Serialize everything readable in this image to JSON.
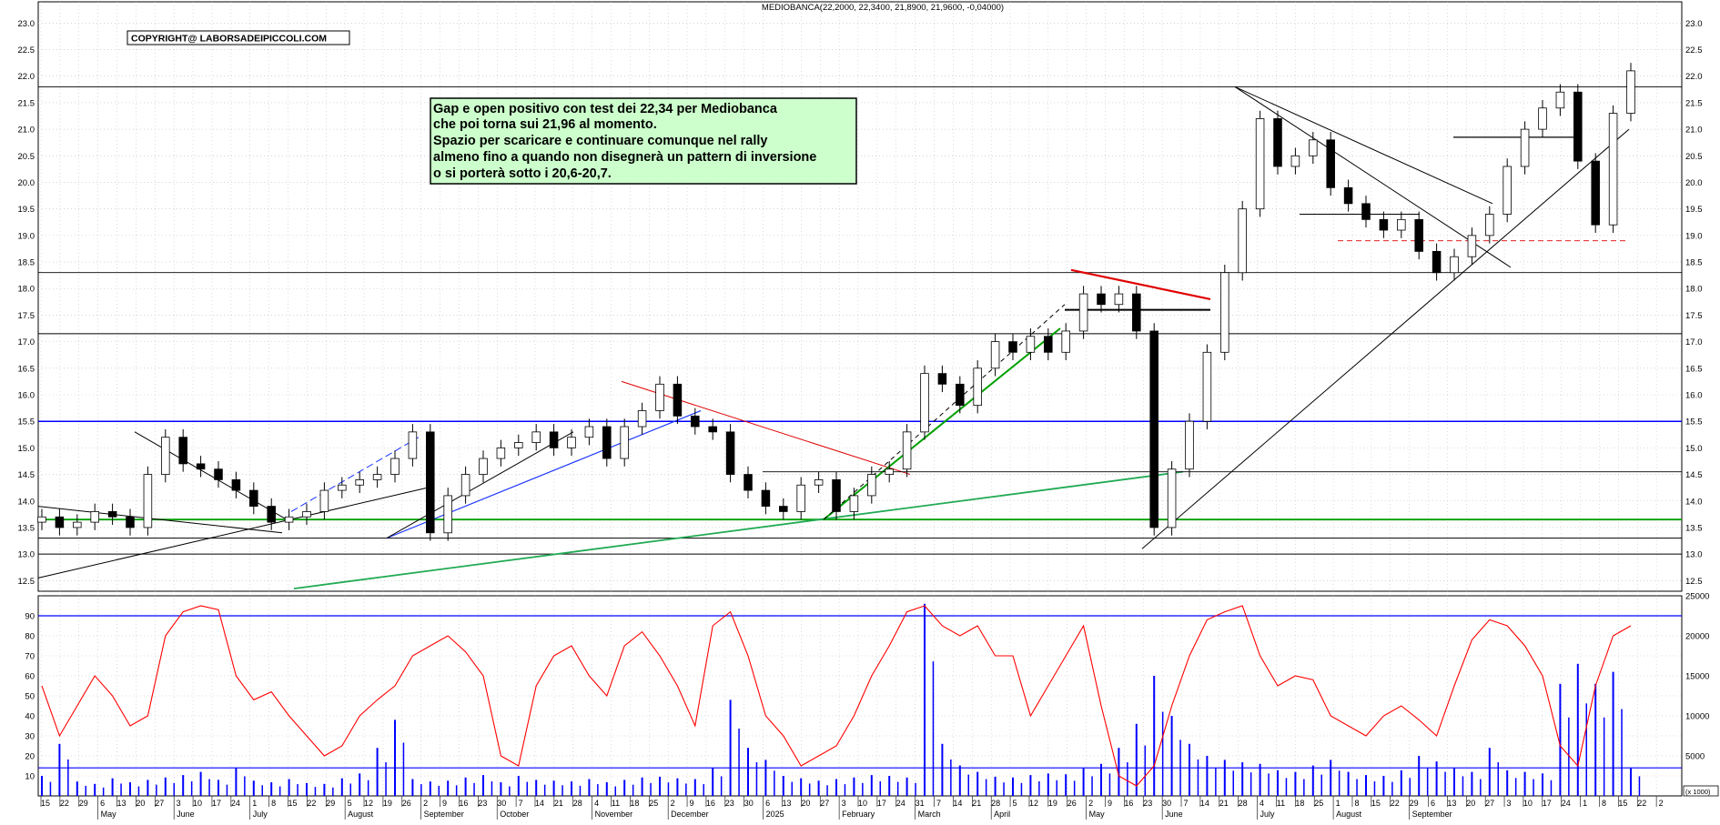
{
  "chart_data": [
    {
      "type": "candlestick",
      "title": "MEDIOBANCA(22,2000, 22,3400, 21,8900, 21,9600, -0,04000)",
      "copyright": "COPYRIGHT@ LABORSADEIPICCOLI.COM",
      "note_lines": [
        "Gap e open positivo con test dei 22,34 per Mediobanca",
        "che poi torna sui 21,96 al momento.",
        "Spazio per scaricare e continuare comunque nel rally",
        "almeno fino a quando non disegnerà un pattern di inversione",
        "o si porterà sotto i 20,6-20,7."
      ],
      "ylim": [
        12.3,
        23.4
      ],
      "y_ticks": [
        12.5,
        13.0,
        13.5,
        14.0,
        14.5,
        15.0,
        15.5,
        16.0,
        16.5,
        17.0,
        17.5,
        18.0,
        18.5,
        19.0,
        19.5,
        20.0,
        20.5,
        21.0,
        21.5,
        22.0,
        22.5,
        23.0
      ],
      "y_tick_labels": [
        "12.5",
        "13.0",
        "13.5",
        "14.0",
        "14.5",
        "15.0",
        "15.5",
        "16.0",
        "16.5",
        "17.0",
        "17.5",
        "18.0",
        "18.5",
        "19.0",
        "19.5",
        "20.0",
        "20.5",
        "21.0",
        "21.5",
        "22.0",
        "22.5",
        "23.0"
      ],
      "grid": true,
      "close_path_weekly": [
        13.7,
        13.5,
        13.6,
        13.8,
        13.7,
        13.5,
        14.5,
        15.2,
        14.7,
        14.6,
        14.4,
        14.2,
        13.9,
        13.6,
        13.7,
        13.8,
        14.2,
        14.3,
        14.4,
        14.5,
        14.8,
        15.3,
        13.4,
        14.1,
        14.5,
        14.8,
        15.0,
        15.1,
        15.3,
        15.0,
        15.2,
        15.4,
        14.8,
        15.4,
        15.7,
        16.2,
        15.6,
        15.4,
        15.3,
        14.5,
        14.2,
        13.9,
        13.8,
        14.3,
        14.4,
        13.8,
        14.1,
        14.5,
        14.6,
        15.3,
        16.4,
        16.2,
        15.8,
        16.5,
        17.0,
        16.8,
        17.1,
        16.8,
        17.2,
        17.9,
        17.7,
        17.9,
        17.2,
        13.5,
        14.6,
        15.5,
        16.8,
        18.3,
        19.5,
        21.2,
        20.3,
        20.5,
        20.8,
        19.9,
        19.6,
        19.3,
        19.1,
        19.3,
        18.7,
        18.3,
        18.6,
        19.0,
        19.4,
        20.3,
        21.0,
        21.4,
        21.7,
        20.4,
        19.2,
        21.3,
        22.1
      ],
      "horizontal_levels": [
        {
          "value": 21.8,
          "color": "#000000"
        },
        {
          "value": 18.3,
          "color": "#000000"
        },
        {
          "value": 17.15,
          "color": "#000000"
        },
        {
          "value": 15.5,
          "color": "#0000ff"
        },
        {
          "value": 13.65,
          "color": "#00a000"
        },
        {
          "value": 13.3,
          "color": "#000000"
        },
        {
          "value": 13.0,
          "color": "#000000"
        },
        {
          "value": 18.9,
          "color": "#e00000",
          "dashed": true
        }
      ]
    },
    {
      "type": "line",
      "series": [
        {
          "color": "#ff0000",
          "values": [
            55,
            30,
            45,
            60,
            50,
            35,
            40,
            80,
            92,
            95,
            93,
            60,
            48,
            52,
            40,
            30,
            20,
            25,
            40,
            48,
            55,
            70,
            75,
            80,
            72,
            60,
            20,
            15,
            55,
            70,
            75,
            60,
            50,
            75,
            82,
            70,
            55,
            35,
            85,
            92,
            70,
            40,
            30,
            15,
            20,
            25,
            40,
            60,
            75,
            92,
            95,
            85,
            80,
            85,
            70,
            70,
            40,
            55,
            70,
            85,
            45,
            10,
            5,
            15,
            45,
            70,
            88,
            92,
            95,
            70,
            55,
            60,
            58,
            40,
            35,
            30,
            40,
            45,
            38,
            30,
            55,
            78,
            88,
            85,
            75,
            60,
            25,
            15,
            55,
            80,
            85
          ]
        }
      ],
      "ylim": [
        0,
        100
      ],
      "y_ticks": [
        10,
        20,
        30,
        40,
        50,
        60,
        70,
        80,
        90
      ],
      "y_tick_labels": [
        "10",
        "20",
        "30",
        "40",
        "50",
        "60",
        "70",
        "80",
        "90"
      ],
      "reference_lines": [
        90,
        14
      ]
    },
    {
      "type": "bar",
      "name": "volume",
      "color": "#0000ff",
      "ylim": [
        0,
        25000
      ],
      "y_ticks": [
        5000,
        10000,
        15000,
        20000,
        25000
      ],
      "y_tick_labels": [
        "5000",
        "10000",
        "15000",
        "20000",
        "25000"
      ],
      "unit_label": "(x 1000)",
      "values": [
        2500,
        6500,
        1800,
        1500,
        2200,
        1700,
        2000,
        2300,
        2600,
        3000,
        2000,
        3500,
        1900,
        1700,
        2100,
        1600,
        1500,
        2200,
        2800,
        6000,
        9500,
        2100,
        1800,
        1900,
        2300,
        2600,
        1700,
        2500,
        2000,
        1900,
        1800,
        2100,
        1700,
        2000,
        2300,
        2400,
        2200,
        2100,
        3500,
        12000,
        6000,
        4500,
        2500,
        2200,
        1900,
        2100,
        2300,
        2600,
        2500,
        2300,
        24000,
        6500,
        3800,
        3000,
        2400,
        2300,
        2600,
        2800,
        2700,
        3500,
        4000,
        6000,
        9000,
        15000,
        10000,
        6500,
        5000,
        4500,
        4200,
        4000,
        3200,
        3000,
        3800,
        4500,
        3000,
        2600,
        2500,
        3200,
        5000,
        4300,
        3500,
        3000,
        6000,
        3200,
        3000,
        2800,
        14000,
        16500,
        14000,
        15500,
        3500
      ]
    }
  ],
  "x_axis": {
    "day_ticks": [
      "15",
      "22",
      "29",
      "6",
      "13",
      "20",
      "27",
      "3",
      "10",
      "17",
      "24",
      "1",
      "8",
      "15",
      "22",
      "29",
      "5",
      "12",
      "19",
      "26",
      "2",
      "9",
      "16",
      "23",
      "30",
      "7",
      "14",
      "21",
      "28",
      "4",
      "11",
      "18",
      "25",
      "2",
      "9",
      "16",
      "23",
      "30",
      "6",
      "13",
      "20",
      "27",
      "3",
      "10",
      "17",
      "24",
      "31",
      "7",
      "14",
      "21",
      "28",
      "5",
      "12",
      "19",
      "26",
      "2",
      "9",
      "16",
      "23",
      "30",
      "7",
      "14",
      "21",
      "28",
      "4",
      "11",
      "18",
      "25",
      "1",
      "8",
      "15",
      "22",
      "29",
      "6",
      "13",
      "20",
      "27",
      "3",
      "10",
      "17",
      "24",
      "1",
      "8",
      "15",
      "22",
      "2"
    ],
    "month_labels": [
      "May",
      "June",
      "July",
      "August",
      "September",
      "October",
      "November",
      "December",
      "2025",
      "February",
      "March",
      "April",
      "May",
      "June",
      "July",
      "August",
      "September"
    ],
    "month_tick_index": [
      3,
      7,
      11,
      16,
      20,
      24,
      29,
      33,
      38,
      42,
      46,
      50,
      55,
      59,
      64,
      68,
      72
    ]
  }
}
